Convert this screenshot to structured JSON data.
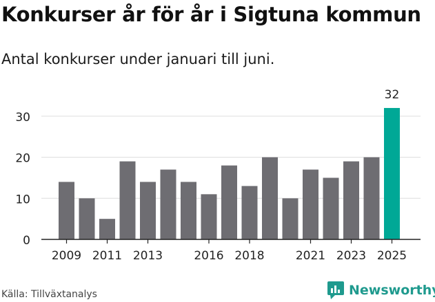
{
  "chart_data": {
    "type": "bar",
    "title": "Konkurser år för år i Sigtuna kommun",
    "subtitle": "Antal konkurser under januari till juni.",
    "categories": [
      "2009",
      "2010",
      "2011",
      "2012",
      "2013",
      "2014",
      "2015",
      "2016",
      "2017",
      "2018",
      "2019",
      "2020",
      "2021",
      "2022",
      "2023",
      "2024",
      "2025"
    ],
    "values": [
      14,
      10,
      5,
      19,
      14,
      17,
      14,
      11,
      18,
      13,
      20,
      10,
      17,
      15,
      19,
      20,
      32
    ],
    "x_tick_labels": [
      "2009",
      "2011",
      "2013",
      "2016",
      "2018",
      "2021",
      "2023",
      "2025"
    ],
    "y_ticks": [
      0,
      10,
      20,
      30
    ],
    "ylim": [
      0,
      34
    ],
    "grid": true,
    "highlight": {
      "category": "2025",
      "label": "32"
    },
    "colors": {
      "bar": "#6e6d72",
      "highlight": "#00a896",
      "grid": "#dddddd",
      "axis": "#222222"
    }
  },
  "footer": {
    "source": "Källa: Tillväxtanalys",
    "brand": "Newsworthy",
    "brand_icon": "bar-chart-icon",
    "brand_color": "#1f9a8e"
  }
}
